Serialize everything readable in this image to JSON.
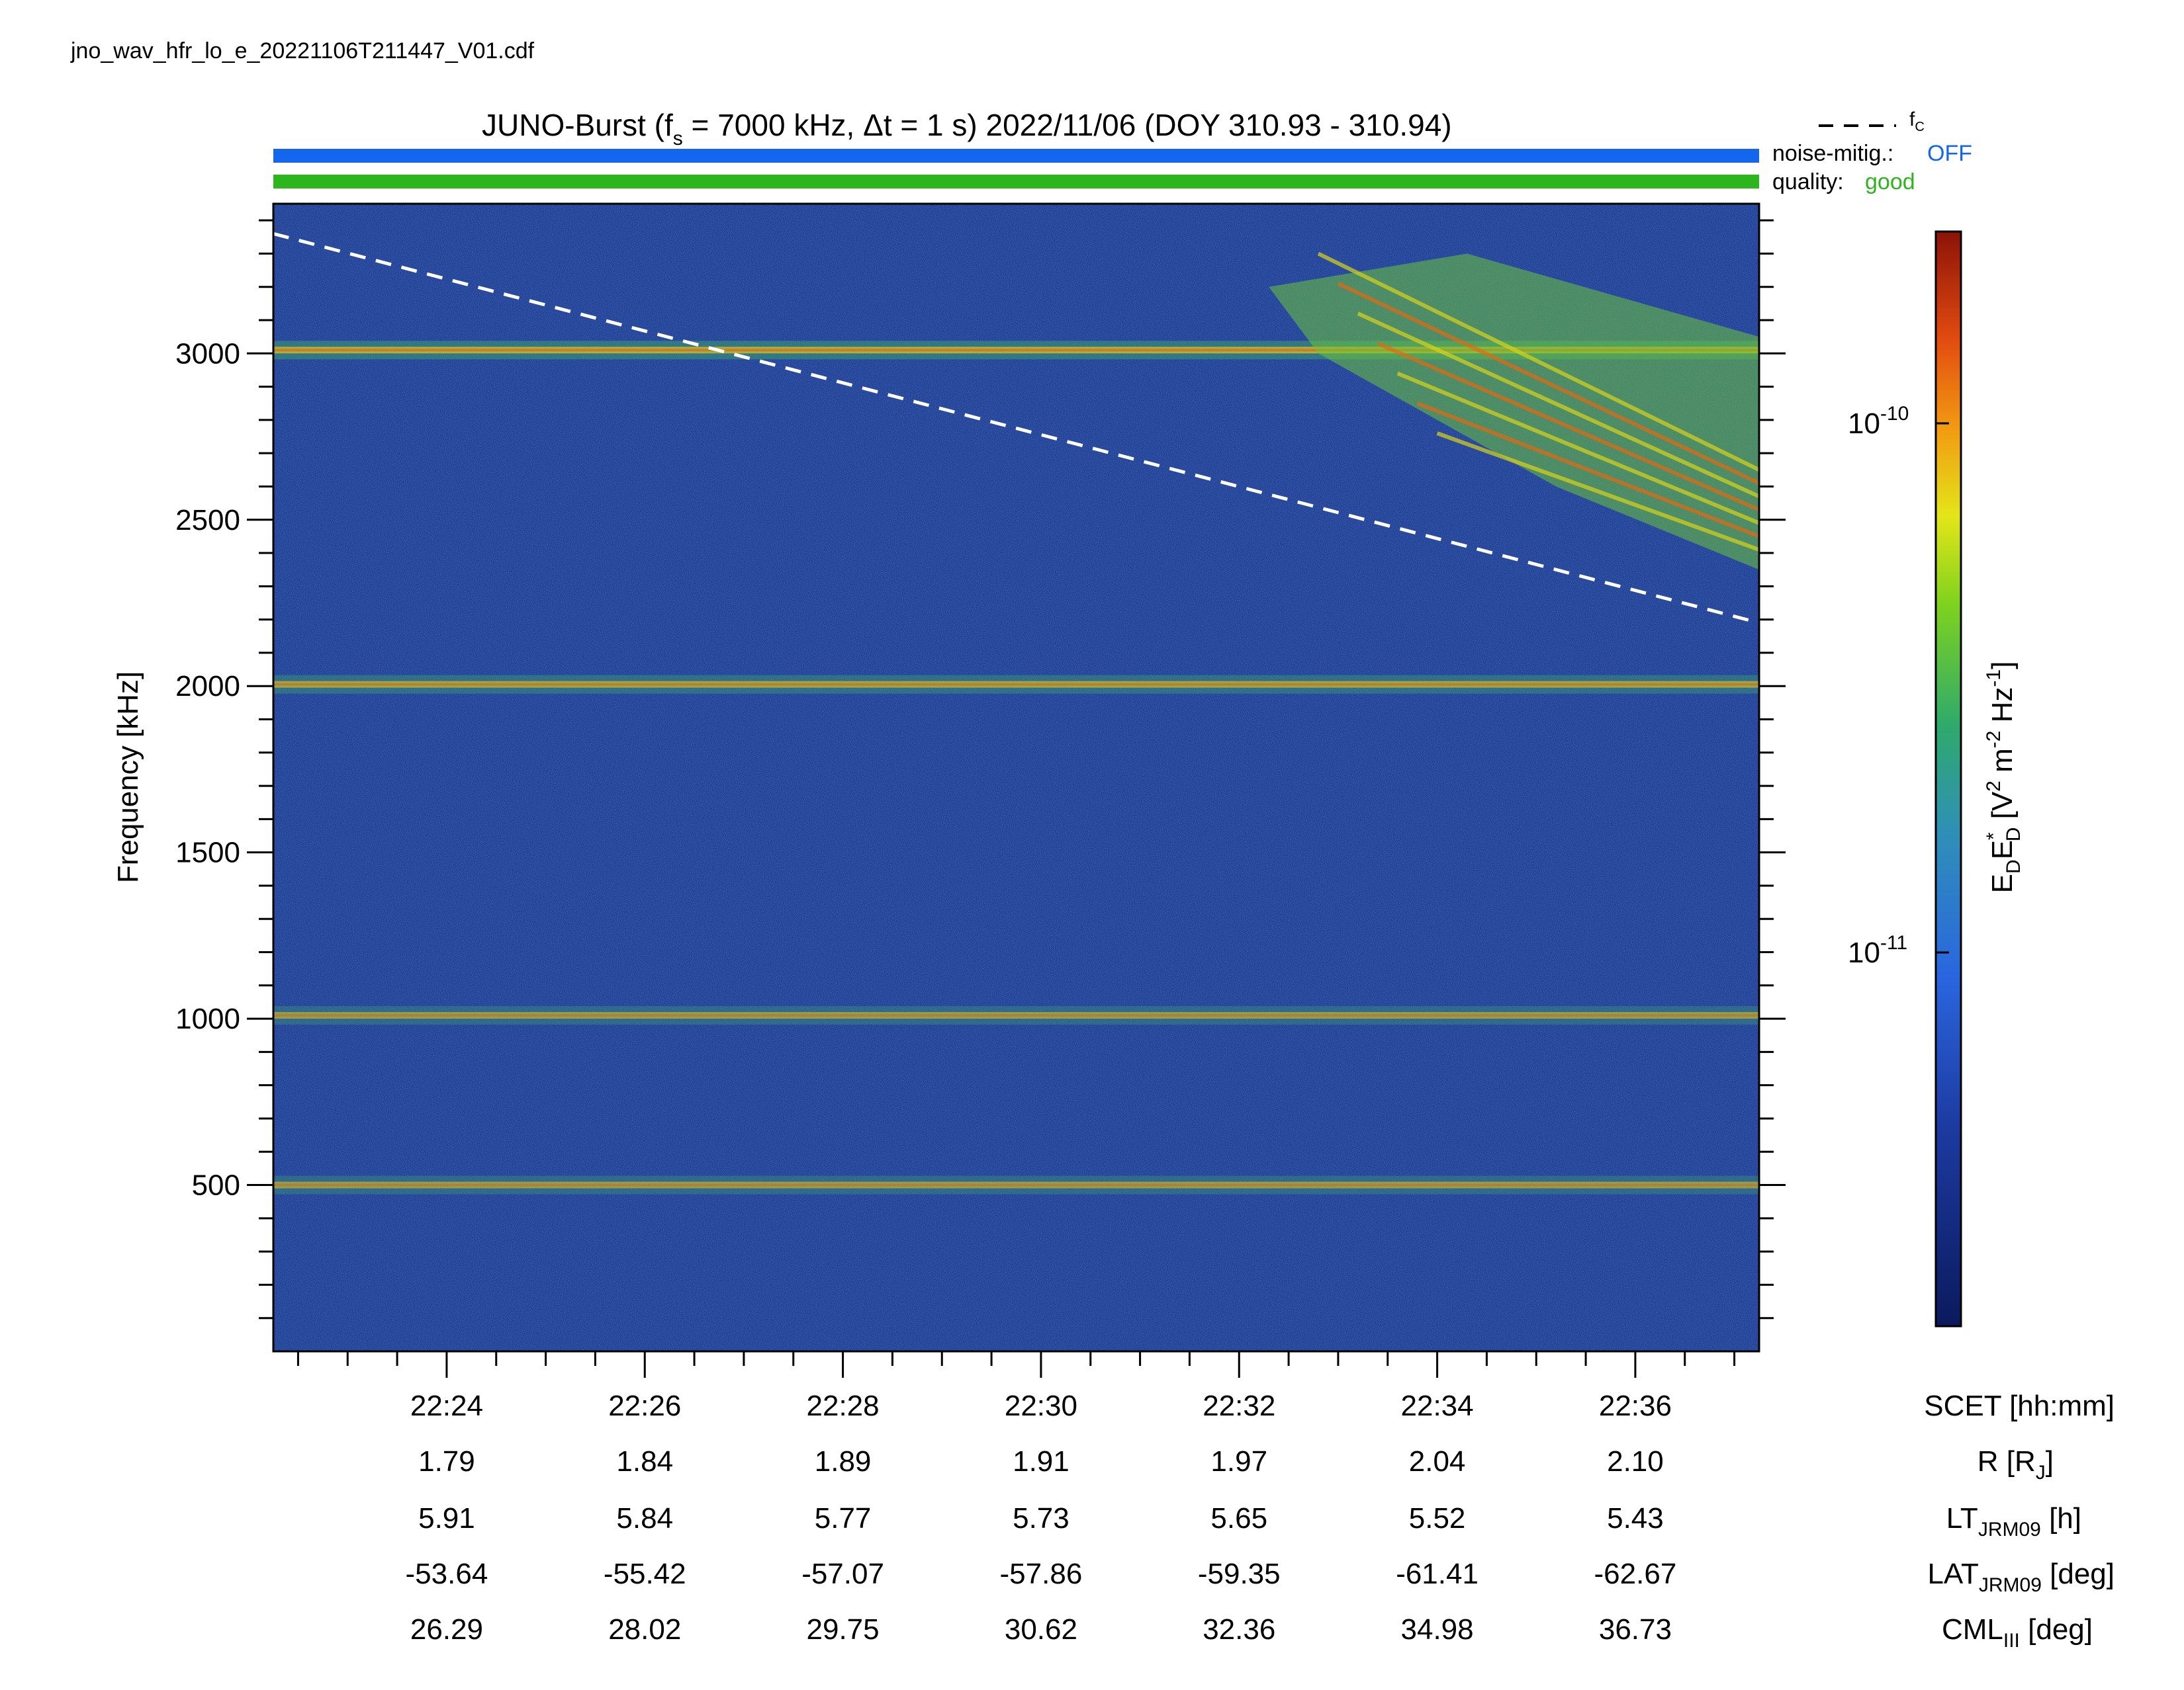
{
  "filename": "jno_wav_hfr_lo_e_20221106T211447_V01.cdf",
  "title": {
    "main": "JUNO-Burst (f",
    "sub": "s",
    "rest": " = 7000 kHz, Δt = 1 s)  2022/11/06 (DOY 310.93 - 310.94)"
  },
  "legend": {
    "fc_label": "f",
    "fc_sub": "C",
    "noise_label": "noise-mitig.:",
    "noise_value": "OFF",
    "quality_label": "quality:",
    "quality_value": "good"
  },
  "colors": {
    "noise_bar": "#1466ee",
    "quality_bar": "#2db51e",
    "noise_value": "#1466ee",
    "quality_value": "#2db51e",
    "background_spectrum": "#1e3b8f"
  },
  "chart_data": {
    "type": "heatmap",
    "xlim_minutes": [
      22.25,
      37.25
    ],
    "xticks": [
      {
        "label": "22:24",
        "R": "1.79",
        "LT": "5.91",
        "LAT": "-53.64",
        "CML": "26.29"
      },
      {
        "label": "22:26",
        "R": "1.84",
        "LT": "5.84",
        "LAT": "-55.42",
        "CML": "28.02"
      },
      {
        "label": "22:28",
        "R": "1.89",
        "LT": "5.77",
        "LAT": "-57.07",
        "CML": "29.75"
      },
      {
        "label": "22:30",
        "R": "1.91",
        "LT": "5.73",
        "LAT": "-57.86",
        "CML": "30.62"
      },
      {
        "label": "22:32",
        "R": "1.97",
        "LT": "5.65",
        "LAT": "-59.35",
        "CML": "32.36"
      },
      {
        "label": "22:34",
        "R": "2.04",
        "LT": "5.52",
        "LAT": "-61.41",
        "CML": "34.98"
      },
      {
        "label": "22:36",
        "R": "2.10",
        "LT": "5.43",
        "LAT": "-62.67",
        "CML": "36.73"
      }
    ],
    "ylabel": "Frequency [kHz]",
    "ylim": [
      0,
      3450
    ],
    "yticks": [
      500,
      1000,
      1500,
      2000,
      2500,
      3000
    ],
    "row_labels": {
      "scet": "SCET [hh:mm]",
      "r_main": "R [R",
      "r_sub": "J",
      "r_end": "]",
      "lt_main": "LT",
      "lt_sub": "JRM09",
      "lt_end": " [h]",
      "lat_main": "LAT",
      "lat_sub": "JRM09",
      "lat_end": " [deg]",
      "cml_main": "CML",
      "cml_sub": "III",
      "cml_end": " [deg]"
    },
    "colorbar": {
      "scale": "log",
      "label_main": "E",
      "tick_1e10": "10",
      "tick_1e10_exp": "-10",
      "tick_1e11": "10",
      "tick_1e11_exp": "-11",
      "label_text": "E_D E_D* [V^2 m^-2 Hz^-1]"
    },
    "bands": [
      {
        "freq": 3010,
        "intensity": 0.85
      },
      {
        "freq": 2005,
        "intensity": 0.7
      },
      {
        "freq": 1010,
        "intensity": 0.6
      },
      {
        "freq": 500,
        "intensity": 0.6
      }
    ],
    "fc_line": {
      "x": [
        22.25,
        37.25
      ],
      "y": [
        3360,
        2190
      ]
    },
    "burst_region": {
      "x_start": 32.8,
      "x_end": 37.25,
      "f_top": 3300,
      "f_bottom_start": 3000,
      "f_bottom_end": 2350
    }
  }
}
